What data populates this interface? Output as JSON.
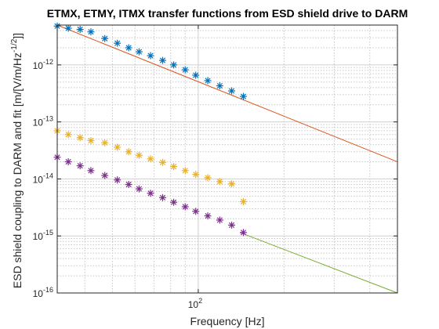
{
  "chart_data": {
    "type": "scatter",
    "title": "ETMX, ETMY, ITMX transfer functions from ESD shield drive to DARM",
    "xlabel": "Frequency [Hz]",
    "ylabel": "ESD shield coupling to DARM and fit [m/[V/m/Hz",
    "ylabel_exp": "-1/2",
    "ylabel_suffix": "]]",
    "xscale": "log",
    "yscale": "log",
    "xlim": [
      32,
      500
    ],
    "ylim": [
      1e-16,
      5e-12
    ],
    "grid": {
      "major": true,
      "minor": true
    },
    "x_ticks": [
      {
        "value": 100,
        "base": "10",
        "exp": "2"
      }
    ],
    "y_ticks": [
      {
        "value": 1e-16,
        "base": "10",
        "exp": "-16"
      },
      {
        "value": 1e-15,
        "base": "10",
        "exp": "-15"
      },
      {
        "value": 1e-14,
        "base": "10",
        "exp": "-14"
      },
      {
        "value": 1e-13,
        "base": "10",
        "exp": "-13"
      },
      {
        "value": 1e-12,
        "base": "10",
        "exp": "-12"
      }
    ],
    "x": [
      32,
      35,
      38.5,
      42,
      47,
      52,
      57,
      62,
      68,
      75,
      82,
      90,
      98,
      108,
      119,
      131,
      144
    ],
    "series": [
      {
        "color": "#0072bd",
        "marker": "asterisk",
        "values": [
          4.8e-12,
          4.4e-12,
          4.2e-12,
          3.8e-12,
          2.9e-12,
          2.4e-12,
          2e-12,
          1.7e-12,
          1.45e-12,
          1.2e-12,
          1e-12,
          8.2e-13,
          6.6e-13,
          5.3e-13,
          4.3e-13,
          3.5e-13,
          2.8e-13
        ]
      },
      {
        "color": "#edb120",
        "marker": "asterisk",
        "values": [
          7e-14,
          6e-14,
          5.3e-14,
          4.7e-14,
          4.3e-14,
          3.6e-14,
          3e-14,
          2.6e-14,
          2.25e-14,
          1.95e-14,
          1.65e-14,
          1.4e-14,
          1.2e-14,
          1.05e-14,
          9e-15,
          8.2e-15,
          4e-15
        ]
      },
      {
        "color": "#7e2f8e",
        "marker": "asterisk",
        "values": [
          2.4e-14,
          2e-14,
          1.7e-14,
          1.4e-14,
          1.15e-14,
          9.6e-15,
          8e-15,
          6.7e-15,
          5.6e-15,
          4.7e-15,
          3.9e-15,
          3.25e-15,
          2.7e-15,
          2.25e-15,
          1.9e-15,
          1.55e-15,
          1.15e-15
        ]
      }
    ],
    "fits": [
      {
        "color": "#d95319",
        "x": [
          32,
          500
        ],
        "values": [
          5e-12,
          2e-14
        ]
      },
      {
        "color": "#77ac30",
        "x": [
          140,
          500
        ],
        "values": [
          1.15e-15,
          1e-16
        ]
      }
    ]
  }
}
